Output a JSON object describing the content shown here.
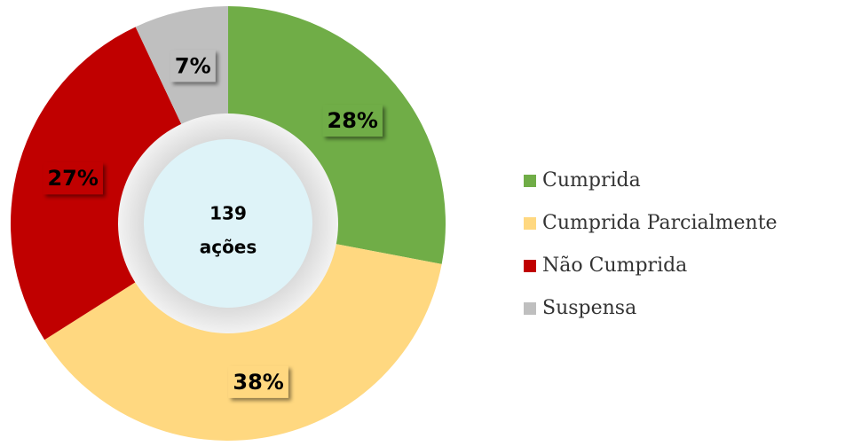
{
  "chart_data": {
    "type": "donut",
    "categories": [
      "Cumprida",
      "Cumprida Parcialmente",
      "Não Cumprida",
      "Suspensa"
    ],
    "values": [
      28,
      38,
      27,
      7
    ],
    "value_labels": [
      "28%",
      "38%",
      "27%",
      "7%"
    ],
    "colors": [
      "#70ad47",
      "#ffd880",
      "#c00000",
      "#bfbfbf"
    ],
    "center_text": [
      "139",
      "ações"
    ],
    "legend": "right"
  }
}
